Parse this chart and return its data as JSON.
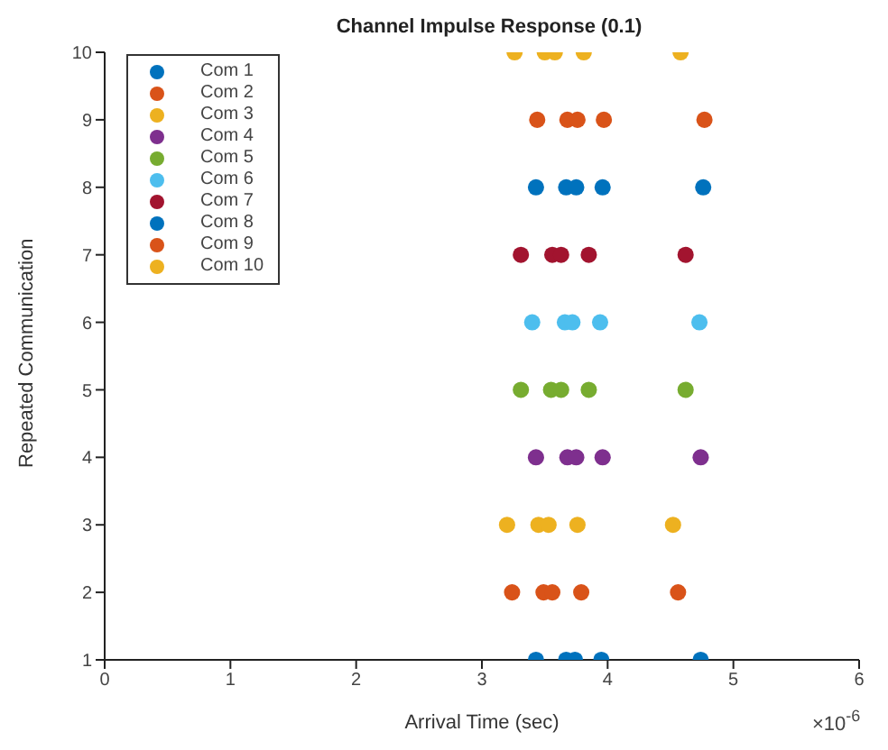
{
  "chart_data": {
    "type": "scatter",
    "title": "Channel Impulse Response (0.1)",
    "xlabel": "Arrival Time (sec)",
    "ylabel": "Repeated Communication",
    "annotations": [
      "×10$^{-6}$"
    ],
    "xlim": [
      0,
      6
    ],
    "xticks": [
      0,
      1,
      2,
      3,
      4,
      5,
      6
    ],
    "ylim": [
      1,
      10
    ],
    "yticks": [
      1,
      2,
      3,
      4,
      5,
      6,
      7,
      8,
      9,
      10
    ],
    "grid": false,
    "legend": "top left",
    "marker": "circle",
    "series": [
      {
        "name": "Com 1",
        "color": "#0072bd",
        "x": [
          3.43,
          3.67,
          3.74,
          3.95,
          4.74
        ],
        "values": [
          1,
          1,
          1,
          1,
          1
        ]
      },
      {
        "name": "Com 2",
        "color": "#d95319",
        "x": [
          3.24,
          3.49,
          3.56,
          3.79,
          4.56
        ],
        "values": [
          2,
          2,
          2,
          2,
          2
        ]
      },
      {
        "name": "Com 3",
        "color": "#edb120",
        "x": [
          3.2,
          3.45,
          3.53,
          3.76,
          4.52
        ],
        "values": [
          3,
          3,
          3,
          3,
          3
        ]
      },
      {
        "name": "Com 4",
        "color": "#7e2f8e",
        "x": [
          3.43,
          3.68,
          3.75,
          3.96,
          4.74
        ],
        "values": [
          4,
          4,
          4,
          4,
          4
        ]
      },
      {
        "name": "Com 5",
        "color": "#77ac30",
        "x": [
          3.31,
          3.55,
          3.63,
          3.85,
          4.62
        ],
        "values": [
          5,
          5,
          5,
          5,
          5
        ]
      },
      {
        "name": "Com 6",
        "color": "#4dbeee",
        "x": [
          3.4,
          3.66,
          3.72,
          3.94,
          4.73
        ],
        "values": [
          6,
          6,
          6,
          6,
          6
        ]
      },
      {
        "name": "Com 7",
        "color": "#a2142f",
        "x": [
          3.31,
          3.56,
          3.63,
          3.85,
          4.62
        ],
        "values": [
          7,
          7,
          7,
          7,
          7
        ]
      },
      {
        "name": "Com 8",
        "color": "#0072bd",
        "x": [
          3.43,
          3.67,
          3.75,
          3.96,
          4.76
        ],
        "values": [
          8,
          8,
          8,
          8,
          8
        ]
      },
      {
        "name": "Com 9",
        "color": "#d95319",
        "x": [
          3.44,
          3.68,
          3.76,
          3.97,
          4.77
        ],
        "values": [
          9,
          9,
          9,
          9,
          9
        ]
      },
      {
        "name": "Com 10",
        "color": "#edb120",
        "x": [
          3.26,
          3.5,
          3.58,
          3.81,
          4.58
        ],
        "values": [
          10,
          10,
          10,
          10,
          10
        ]
      }
    ]
  }
}
